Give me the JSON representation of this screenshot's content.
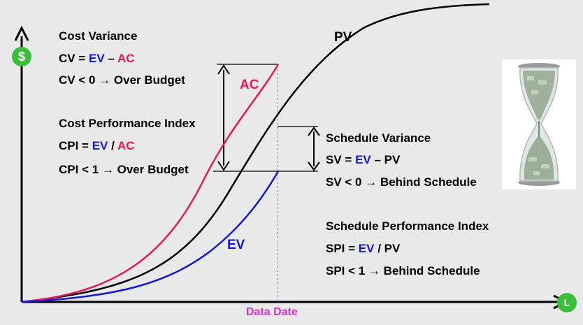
{
  "curves": {
    "pv": {
      "label": "PV",
      "color": "#000000"
    },
    "ac": {
      "label": "AC",
      "color": "#e8145a"
    },
    "ev": {
      "label": "EV",
      "color": "#1515d6"
    }
  },
  "axis": {
    "data_date_label": "Data Date",
    "y_icon": "dollar-icon",
    "y_icon_glyph": "$",
    "x_icon": "clock-icon",
    "x_icon_glyph": "L"
  },
  "cost_variance": {
    "title": "Cost Variance",
    "formula": {
      "lhs": "CV = ",
      "a": "EV",
      "op": " – ",
      "b": "AC"
    },
    "rule": "CV < 0 → Over Budget"
  },
  "cost_performance_index": {
    "title": "Cost Performance Index",
    "formula": {
      "lhs": "CPI = ",
      "a": "EV",
      "op": " / ",
      "b": "AC"
    },
    "rule": "CPI < 1 → Over Budget"
  },
  "schedule_variance": {
    "title": "Schedule Variance",
    "formula": {
      "lhs": "SV = ",
      "a": "EV",
      "op": " – ",
      "b": "PV"
    },
    "rule": "SV < 0 → Behind Schedule"
  },
  "schedule_performance_index": {
    "title": "Schedule Performance Index",
    "formula": {
      "lhs": "SPI = ",
      "a": "EV",
      "op": " / ",
      "b": "PV"
    },
    "rule": "SPI < 1 → Behind Schedule"
  },
  "colors": {
    "accent_blue": "#1515d6",
    "accent_red": "#e8145a",
    "data_date": "#cc33cc",
    "icon_green": "#3bbf3b"
  }
}
